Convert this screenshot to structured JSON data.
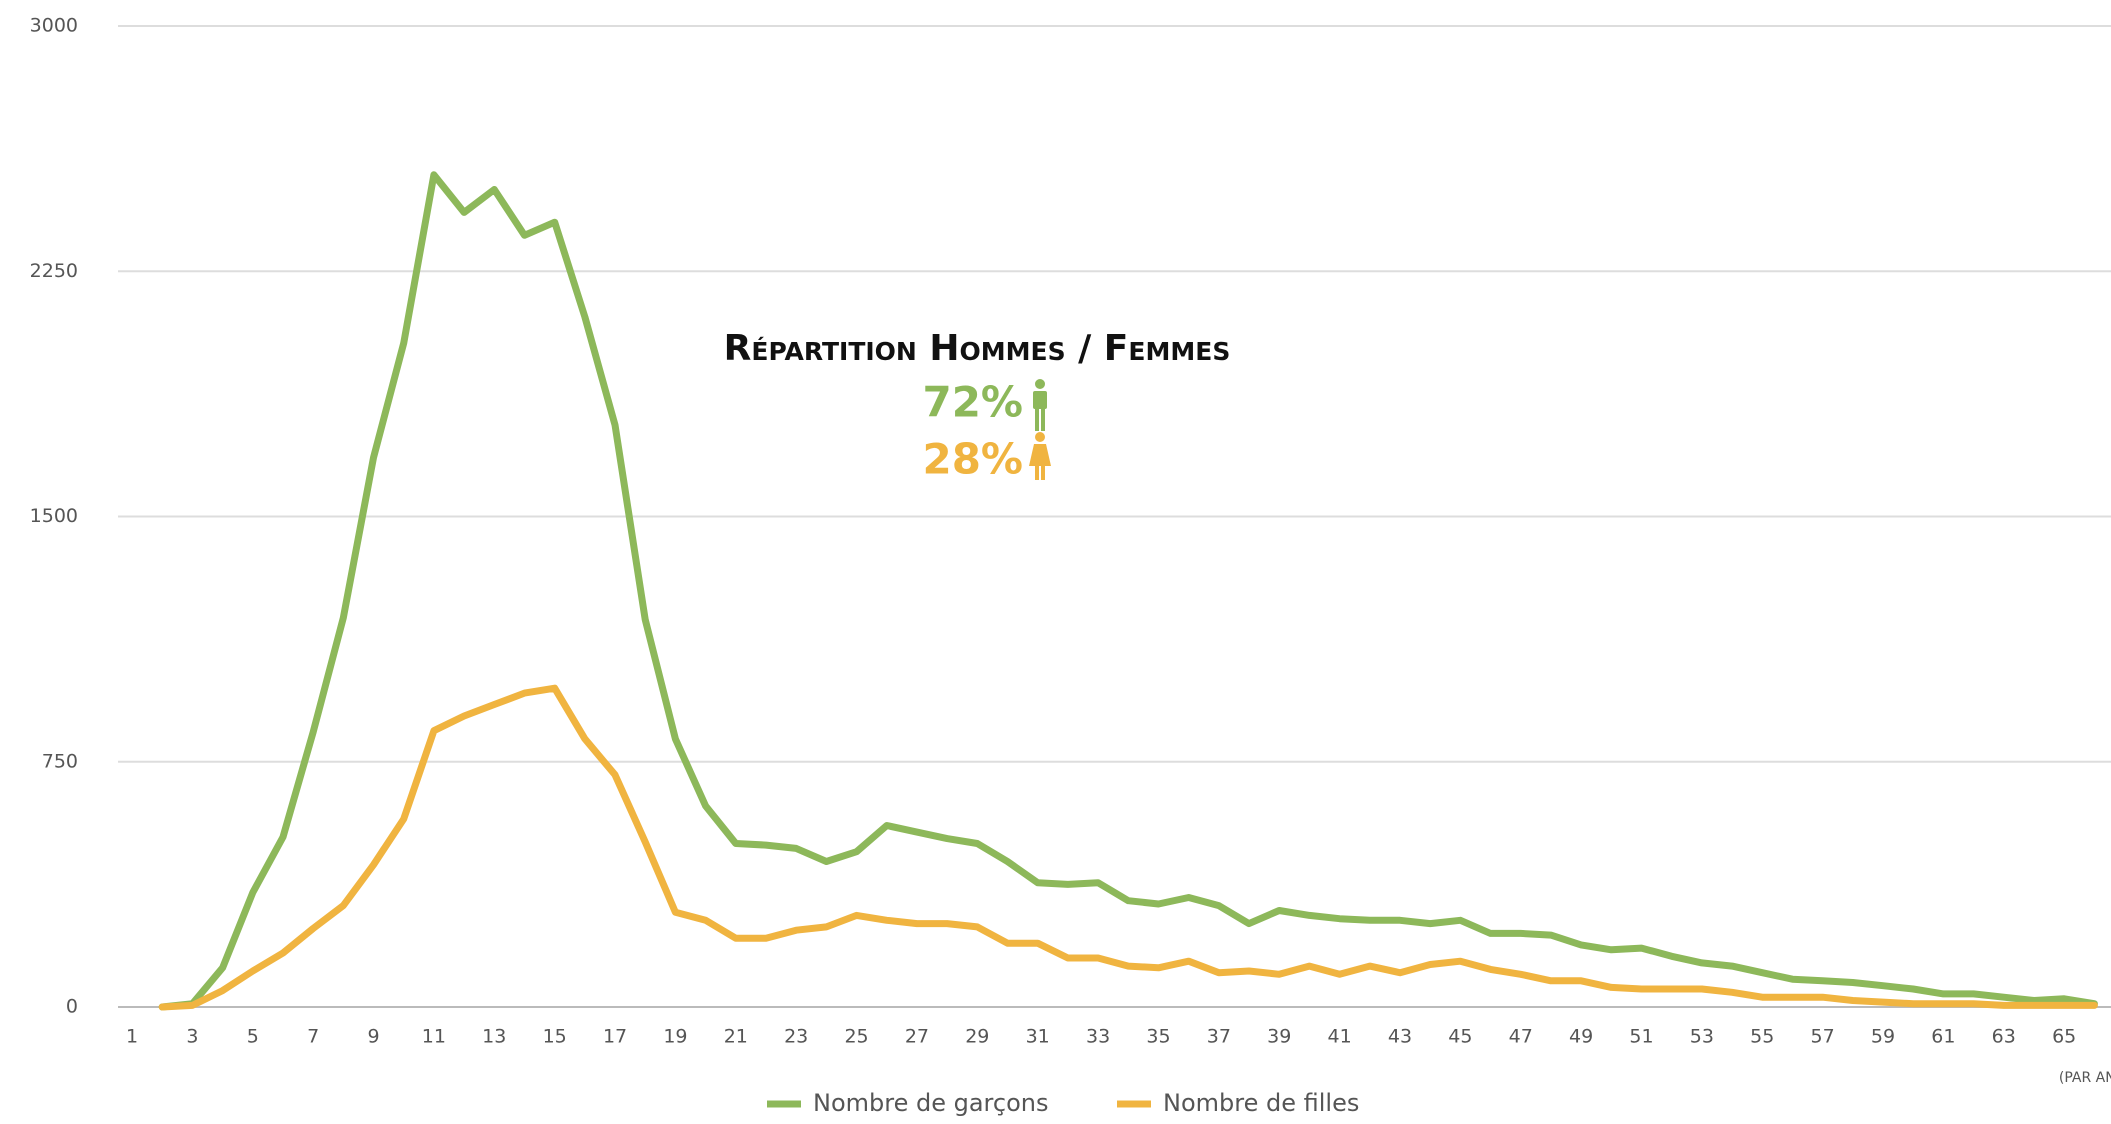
{
  "chart_data": {
    "type": "line",
    "annotations": {
      "title": "Répartition Hommes / Femmes",
      "male": "72%",
      "female": "28%"
    },
    "xlabel": "(PAR AN)",
    "categories": [
      1,
      null,
      3,
      null,
      5,
      null,
      7,
      null,
      9,
      null,
      11,
      null,
      13,
      null,
      15,
      null,
      17,
      null,
      19,
      null,
      21,
      null,
      23,
      null,
      25,
      null,
      27,
      null,
      29,
      null,
      31,
      null,
      33,
      null,
      35,
      null,
      37,
      null,
      39,
      null,
      41,
      null,
      43,
      null,
      45,
      null,
      47,
      null,
      49,
      null,
      51,
      null,
      53,
      null,
      55,
      null,
      57,
      null,
      59,
      null,
      61,
      null,
      63,
      null,
      65,
      null
    ],
    "series": [
      {
        "name": "Nombre de garçons",
        "color": "#8db85a",
        "values": [
          null,
          0,
          10,
          120,
          350,
          520,
          840,
          1190,
          1680,
          2030,
          2545,
          2430,
          2500,
          2360,
          2400,
          2110,
          1780,
          1185,
          820,
          615,
          500,
          495,
          485,
          445,
          475,
          555,
          535,
          515,
          500,
          445,
          380,
          375,
          380,
          325,
          315,
          335,
          310,
          255,
          295,
          280,
          270,
          265,
          265,
          255,
          265,
          225,
          225,
          220,
          190,
          175,
          180,
          155,
          135,
          125,
          105,
          85,
          80,
          75,
          65,
          55,
          40,
          40,
          30,
          20,
          25,
          10
        ]
      },
      {
        "name": "Nombre de filles",
        "color": "#f0b440",
        "values": [
          null,
          0,
          5,
          50,
          110,
          165,
          240,
          310,
          435,
          575,
          845,
          890,
          925,
          960,
          975,
          820,
          710,
          505,
          290,
          265,
          210,
          210,
          235,
          245,
          280,
          265,
          255,
          255,
          245,
          195,
          195,
          150,
          150,
          125,
          120,
          140,
          105,
          110,
          100,
          125,
          100,
          125,
          105,
          130,
          140,
          115,
          100,
          80,
          80,
          60,
          55,
          55,
          55,
          45,
          30,
          30,
          30,
          20,
          15,
          10,
          10,
          10,
          5,
          5,
          5,
          5
        ]
      }
    ],
    "ylim": [
      0,
      3000
    ],
    "yticks": [
      0,
      750,
      1500,
      2250,
      3000
    ],
    "grid": true,
    "legend": "bottom"
  }
}
